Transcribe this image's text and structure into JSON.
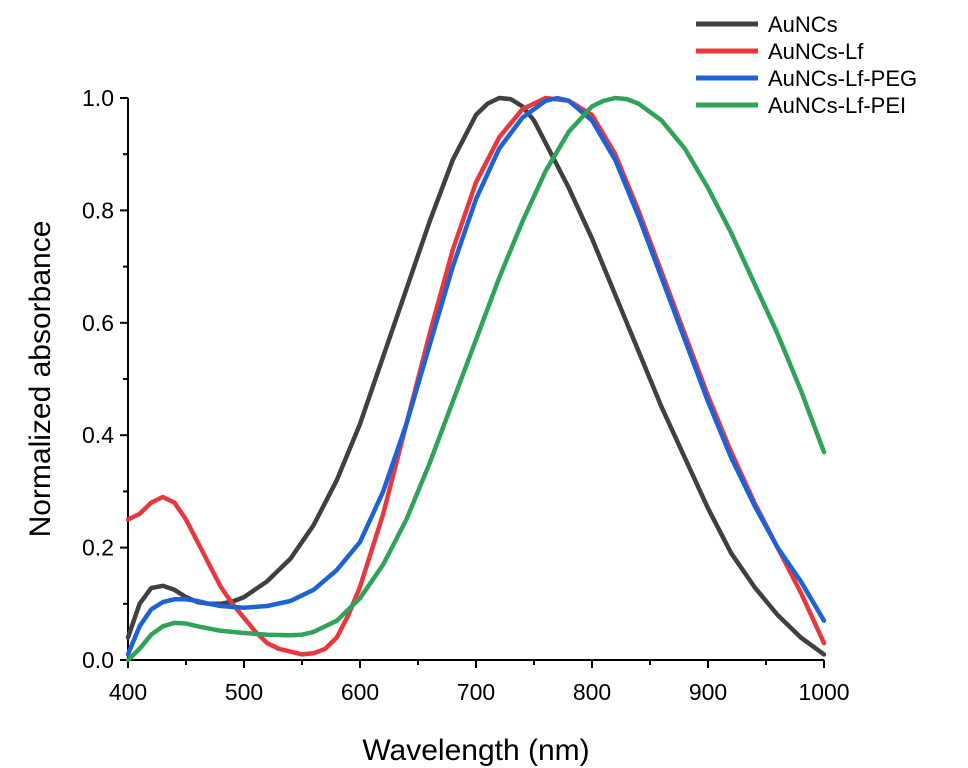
{
  "chart_data": {
    "type": "line",
    "xlabel": "Wavelength (nm)",
    "ylabel": "Normalized absorbance",
    "xlim": [
      400,
      1000
    ],
    "ylim": [
      0.0,
      1.0
    ],
    "x_ticks": [
      "400",
      "500",
      "600",
      "700",
      "800",
      "900",
      "1000"
    ],
    "y_ticks": [
      "0.0",
      "0.2",
      "0.4",
      "0.6",
      "0.8",
      "1.0"
    ],
    "grid": false,
    "legend": "top-right",
    "series": [
      {
        "name": "AuNCs",
        "color": "#404040",
        "points": [
          [
            400,
            0.04
          ],
          [
            410,
            0.1
          ],
          [
            420,
            0.128
          ],
          [
            430,
            0.132
          ],
          [
            440,
            0.125
          ],
          [
            450,
            0.112
          ],
          [
            460,
            0.103
          ],
          [
            470,
            0.1
          ],
          [
            480,
            0.1
          ],
          [
            490,
            0.104
          ],
          [
            500,
            0.112
          ],
          [
            520,
            0.14
          ],
          [
            540,
            0.18
          ],
          [
            560,
            0.24
          ],
          [
            580,
            0.32
          ],
          [
            600,
            0.42
          ],
          [
            620,
            0.54
          ],
          [
            640,
            0.66
          ],
          [
            660,
            0.78
          ],
          [
            680,
            0.89
          ],
          [
            700,
            0.97
          ],
          [
            710,
            0.99
          ],
          [
            720,
            1.0
          ],
          [
            730,
            0.998
          ],
          [
            740,
            0.985
          ],
          [
            750,
            0.96
          ],
          [
            760,
            0.92
          ],
          [
            780,
            0.84
          ],
          [
            800,
            0.75
          ],
          [
            820,
            0.65
          ],
          [
            840,
            0.55
          ],
          [
            860,
            0.45
          ],
          [
            880,
            0.36
          ],
          [
            900,
            0.27
          ],
          [
            920,
            0.19
          ],
          [
            940,
            0.13
          ],
          [
            960,
            0.08
          ],
          [
            980,
            0.04
          ],
          [
            1000,
            0.01
          ]
        ]
      },
      {
        "name": "AuNCs-Lf",
        "color": "#e8383d",
        "points": [
          [
            400,
            0.25
          ],
          [
            410,
            0.26
          ],
          [
            420,
            0.28
          ],
          [
            430,
            0.29
          ],
          [
            440,
            0.28
          ],
          [
            450,
            0.25
          ],
          [
            460,
            0.21
          ],
          [
            470,
            0.17
          ],
          [
            480,
            0.13
          ],
          [
            490,
            0.1
          ],
          [
            500,
            0.075
          ],
          [
            510,
            0.05
          ],
          [
            520,
            0.03
          ],
          [
            530,
            0.02
          ],
          [
            540,
            0.015
          ],
          [
            550,
            0.01
          ],
          [
            560,
            0.012
          ],
          [
            570,
            0.02
          ],
          [
            580,
            0.04
          ],
          [
            590,
            0.08
          ],
          [
            600,
            0.13
          ],
          [
            620,
            0.26
          ],
          [
            640,
            0.42
          ],
          [
            660,
            0.58
          ],
          [
            680,
            0.73
          ],
          [
            700,
            0.85
          ],
          [
            720,
            0.93
          ],
          [
            740,
            0.98
          ],
          [
            760,
            1.0
          ],
          [
            780,
            0.995
          ],
          [
            800,
            0.97
          ],
          [
            820,
            0.9
          ],
          [
            840,
            0.8
          ],
          [
            860,
            0.69
          ],
          [
            880,
            0.58
          ],
          [
            900,
            0.47
          ],
          [
            920,
            0.37
          ],
          [
            940,
            0.28
          ],
          [
            960,
            0.2
          ],
          [
            980,
            0.12
          ],
          [
            1000,
            0.03
          ]
        ]
      },
      {
        "name": "AuNCs-Lf-PEG",
        "color": "#1e63d6",
        "points": [
          [
            400,
            0.01
          ],
          [
            410,
            0.06
          ],
          [
            420,
            0.09
          ],
          [
            430,
            0.103
          ],
          [
            440,
            0.108
          ],
          [
            450,
            0.108
          ],
          [
            460,
            0.105
          ],
          [
            470,
            0.1
          ],
          [
            480,
            0.096
          ],
          [
            500,
            0.093
          ],
          [
            520,
            0.096
          ],
          [
            540,
            0.105
          ],
          [
            560,
            0.125
          ],
          [
            580,
            0.16
          ],
          [
            600,
            0.21
          ],
          [
            620,
            0.3
          ],
          [
            640,
            0.42
          ],
          [
            660,
            0.56
          ],
          [
            680,
            0.7
          ],
          [
            700,
            0.82
          ],
          [
            720,
            0.91
          ],
          [
            740,
            0.965
          ],
          [
            760,
            0.995
          ],
          [
            770,
            1.0
          ],
          [
            780,
            0.995
          ],
          [
            800,
            0.96
          ],
          [
            820,
            0.89
          ],
          [
            840,
            0.79
          ],
          [
            860,
            0.68
          ],
          [
            880,
            0.57
          ],
          [
            900,
            0.46
          ],
          [
            920,
            0.36
          ],
          [
            940,
            0.275
          ],
          [
            960,
            0.2
          ],
          [
            980,
            0.14
          ],
          [
            1000,
            0.07
          ]
        ]
      },
      {
        "name": "AuNCs-Lf-PEI",
        "color": "#2fa35a",
        "points": [
          [
            400,
            0.0
          ],
          [
            410,
            0.02
          ],
          [
            420,
            0.045
          ],
          [
            430,
            0.06
          ],
          [
            440,
            0.066
          ],
          [
            450,
            0.065
          ],
          [
            460,
            0.06
          ],
          [
            480,
            0.052
          ],
          [
            500,
            0.048
          ],
          [
            520,
            0.045
          ],
          [
            540,
            0.044
          ],
          [
            550,
            0.045
          ],
          [
            560,
            0.05
          ],
          [
            580,
            0.07
          ],
          [
            600,
            0.11
          ],
          [
            620,
            0.17
          ],
          [
            640,
            0.25
          ],
          [
            660,
            0.35
          ],
          [
            680,
            0.46
          ],
          [
            700,
            0.57
          ],
          [
            720,
            0.68
          ],
          [
            740,
            0.78
          ],
          [
            760,
            0.87
          ],
          [
            780,
            0.94
          ],
          [
            800,
            0.985
          ],
          [
            810,
            0.995
          ],
          [
            820,
            1.0
          ],
          [
            830,
            0.998
          ],
          [
            840,
            0.99
          ],
          [
            860,
            0.96
          ],
          [
            880,
            0.91
          ],
          [
            900,
            0.84
          ],
          [
            920,
            0.76
          ],
          [
            940,
            0.67
          ],
          [
            960,
            0.58
          ],
          [
            980,
            0.48
          ],
          [
            1000,
            0.37
          ]
        ]
      }
    ]
  }
}
